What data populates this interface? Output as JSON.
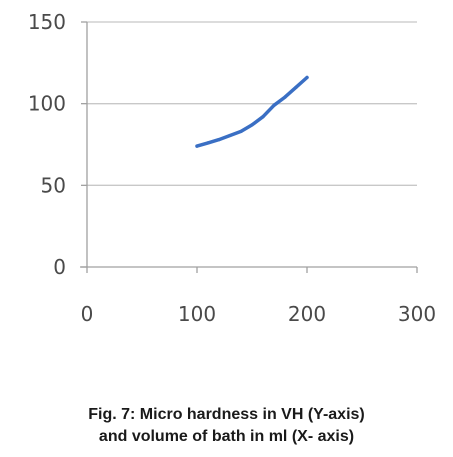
{
  "caption": {
    "line1": "Fig. 7: Micro hardness in VH (Y-axis)",
    "line2": "and volume of bath in ml  (X- axis)"
  },
  "chart_data": {
    "type": "line",
    "x": [
      100,
      110,
      120,
      130,
      140,
      150,
      160,
      170,
      180,
      190,
      200
    ],
    "series": [
      {
        "values": [
          74,
          76,
          78,
          80.5,
          83,
          87,
          92,
          99,
          104,
          110,
          116
        ]
      }
    ],
    "xlim": [
      0,
      300
    ],
    "ylim": [
      0,
      150
    ],
    "xticks": [
      "0",
      "100",
      "200",
      "300"
    ],
    "yticks": [
      "0",
      "50",
      "100",
      "150"
    ],
    "grid": "horizontal",
    "line_color": "#3a6fc4",
    "grid_color": "#c8c8c8",
    "axis_color": "#a0a0a0"
  }
}
